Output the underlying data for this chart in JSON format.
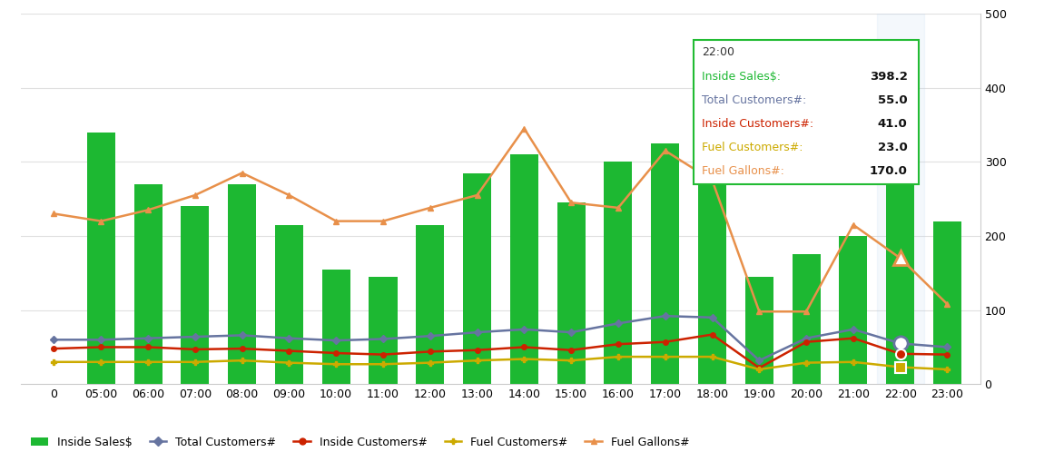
{
  "hours": [
    "0",
    "05:00",
    "06:00",
    "07:00",
    "08:00",
    "09:00",
    "10:00",
    "11:00",
    "12:00",
    "13:00",
    "14:00",
    "15:00",
    "16:00",
    "17:00",
    "18:00",
    "19:00",
    "20:00",
    "21:00",
    "22:00",
    "23:00"
  ],
  "inside_sales": [
    0,
    340,
    270,
    240,
    270,
    215,
    155,
    145,
    215,
    285,
    310,
    245,
    300,
    325,
    400,
    145,
    175,
    200,
    398,
    220
  ],
  "total_customers": [
    60,
    60,
    62,
    64,
    66,
    62,
    59,
    61,
    65,
    70,
    74,
    70,
    82,
    92,
    90,
    32,
    62,
    74,
    55,
    50
  ],
  "inside_customers": [
    48,
    50,
    50,
    47,
    48,
    45,
    42,
    40,
    44,
    46,
    50,
    46,
    54,
    57,
    67,
    22,
    57,
    62,
    41,
    40
  ],
  "fuel_customers": [
    30,
    30,
    30,
    30,
    32,
    29,
    27,
    27,
    29,
    32,
    34,
    32,
    37,
    37,
    37,
    20,
    29,
    30,
    23,
    20
  ],
  "fuel_gallons": [
    230,
    220,
    235,
    255,
    285,
    255,
    220,
    220,
    238,
    255,
    345,
    245,
    238,
    315,
    275,
    98,
    98,
    215,
    170,
    108
  ],
  "bar_color": "#1db832",
  "total_customers_color": "#6674a0",
  "inside_customers_color": "#cc2200",
  "fuel_customers_color": "#ccaa00",
  "fuel_gallons_color": "#e8904a",
  "bg_color": "#ffffff",
  "grid_color": "#e0e0e0",
  "ylim": [
    0,
    500
  ],
  "tooltip_idx": 18,
  "tooltip_label": "22:00",
  "tooltip_rows": [
    {
      "label": "Inside Sales$:",
      "value": "398.2",
      "color": "#1db832"
    },
    {
      "label": "Total Customers#:",
      "value": "55.0",
      "color": "#6674a0"
    },
    {
      "label": "Inside Customers#:",
      "value": "41.0",
      "color": "#cc2200"
    },
    {
      "label": "Fuel Customers#:",
      "value": "23.0",
      "color": "#ccaa00"
    },
    {
      "label": "Fuel Gallons#:",
      "value": "170.0",
      "color": "#e8904a"
    }
  ]
}
